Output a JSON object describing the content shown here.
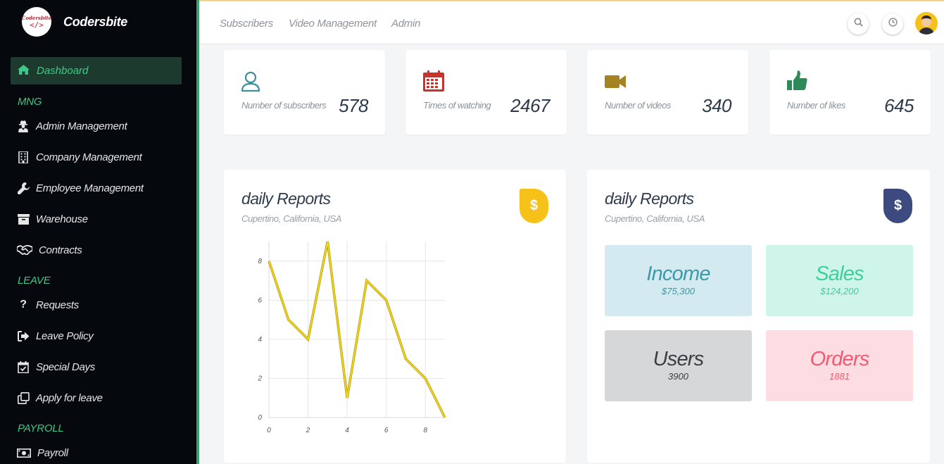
{
  "brand": {
    "logo_line1": "Codersbite",
    "logo_line2": "</>",
    "name": "Codersbite"
  },
  "sidebar": {
    "active": {
      "label": "Dashboard",
      "icon": "home-icon"
    },
    "sections": [
      {
        "title": "MNG",
        "items": [
          {
            "label": "Admin Management",
            "icon": "user-secret-icon"
          },
          {
            "label": "Company Management",
            "icon": "building-icon"
          },
          {
            "label": "Employee Management",
            "icon": "wrench-icon"
          },
          {
            "label": "Warehouse",
            "icon": "archive-icon"
          },
          {
            "label": "Contracts",
            "icon": "handshake-icon"
          }
        ]
      },
      {
        "title": "LEAVE",
        "items": [
          {
            "label": "Requests",
            "icon": "question-icon"
          },
          {
            "label": "Leave Policy",
            "icon": "sign-out-icon"
          },
          {
            "label": "Special Days",
            "icon": "calendar-check-icon"
          },
          {
            "label": "Apply for leave",
            "icon": "clone-icon"
          }
        ]
      },
      {
        "title": "PAYROLL",
        "items": [
          {
            "label": "Payroll",
            "icon": "money-bill-icon"
          }
        ]
      }
    ]
  },
  "topbar": {
    "links": [
      "Subscribers",
      "Video Management",
      "Admin"
    ],
    "icons": [
      "search-icon",
      "clock-icon",
      "avatar-icon"
    ]
  },
  "stats": [
    {
      "label": "Number of subscribers",
      "value": "578",
      "icon": "user-icon",
      "color": "#3d8e99"
    },
    {
      "label": "Times of watching",
      "value": "2467",
      "icon": "calendar-icon",
      "color": "#c8342c"
    },
    {
      "label": "Number of videos",
      "value": "340",
      "icon": "video-camera-icon",
      "color": "#a58322"
    },
    {
      "label": "Number of likes",
      "value": "645",
      "icon": "thumbs-up-icon",
      "color": "#2e8a5a"
    }
  ],
  "report_left": {
    "title": "daily Reports",
    "subtitle": "Cupertino, California, USA",
    "badge": "$",
    "badge_color": "#f6c21a"
  },
  "report_right": {
    "title": "daily Reports",
    "subtitle": "Cupertino, California, USA",
    "badge": "$",
    "badge_color": "#3c4a80",
    "tiles": [
      {
        "name": "Income",
        "value": "$75,300",
        "bg": "#d2eaf0",
        "fg": "#3d9aaa"
      },
      {
        "name": "Sales",
        "value": "$124,200",
        "bg": "#cff5ea",
        "fg": "#3fcf9a"
      },
      {
        "name": "Users",
        "value": "3900",
        "bg": "#d6d7d8",
        "fg": "#3a3f46"
      },
      {
        "name": "Orders",
        "value": "1881",
        "bg": "#fddde2",
        "fg": "#f25a73"
      }
    ]
  },
  "chart_data": {
    "type": "line",
    "x": [
      0,
      1,
      2,
      3,
      4,
      5,
      6,
      7,
      8,
      9
    ],
    "series": [
      {
        "values": [
          8,
          5,
          4,
          9,
          1,
          7,
          6,
          3,
          2,
          0
        ],
        "color": "#f2d91a"
      }
    ],
    "x_ticks": [
      "0",
      "2",
      "4",
      "6",
      "8"
    ],
    "y_ticks": [
      "0",
      "2",
      "4",
      "6",
      "8"
    ],
    "xlim": [
      0,
      9
    ],
    "ylim": [
      0,
      9
    ],
    "grid": true
  }
}
